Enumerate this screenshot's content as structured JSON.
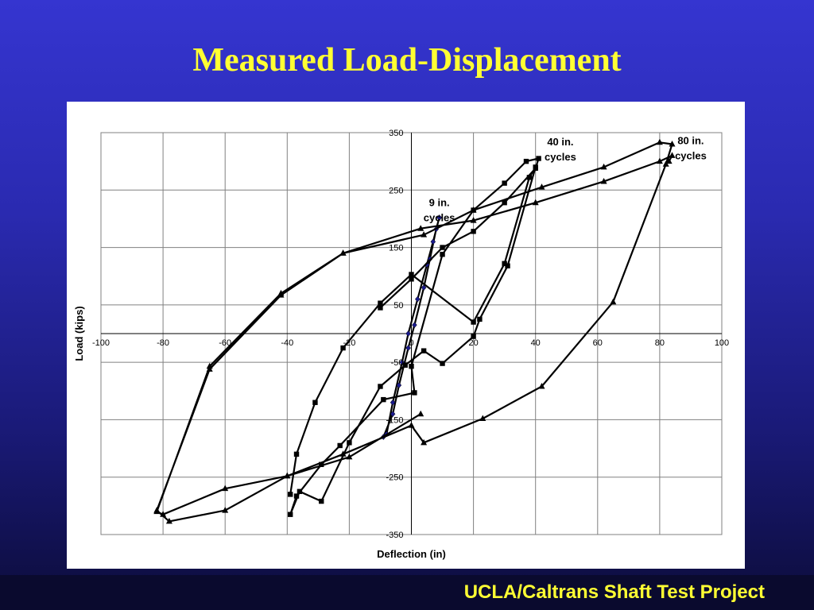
{
  "slide": {
    "title": "Measured Load-Displacement",
    "footer": "UCLA/Caltrans Shaft Test Project"
  },
  "colors": {
    "background_top": "#3535d0",
    "background_bottom": "#0c0c3a",
    "title": "#ffff33",
    "footer_text": "#ffff33",
    "series_line": "#000000",
    "diamond_marker": "#1a1a8c"
  },
  "chart_data": {
    "type": "line",
    "title": "",
    "xlabel": "Deflection (in)",
    "ylabel": "Load (kips)",
    "xlim": [
      -100,
      100
    ],
    "ylim": [
      -350,
      350
    ],
    "x_ticks": [
      -100,
      -80,
      -60,
      -40,
      -20,
      0,
      20,
      40,
      60,
      80,
      100
    ],
    "y_ticks": [
      -350,
      -250,
      -150,
      -50,
      50,
      150,
      250,
      350
    ],
    "x_tick_labels": [
      "-100",
      "-80",
      "-60",
      "-40",
      "-20",
      "0",
      "20",
      "40",
      "60",
      "80",
      "100"
    ],
    "y_tick_labels": [
      "-350",
      "-250",
      "-150",
      "-50",
      "50",
      "150",
      "250",
      "350"
    ],
    "grid": true,
    "annotations": [
      {
        "line1": "9 in.",
        "line2": "cycles",
        "x": 9,
        "y": 222
      },
      {
        "line1": "40 in.",
        "line2": "cycles",
        "x": 48,
        "y": 328
      },
      {
        "line1": "80 in.",
        "line2": "cycles",
        "x": 90,
        "y": 330
      }
    ],
    "series": [
      {
        "marker": "diamond",
        "values": [
          [
            9,
            202
          ],
          [
            8,
            182
          ],
          [
            6,
            130
          ],
          [
            4,
            80
          ],
          [
            1,
            15
          ],
          [
            -1,
            -25
          ],
          [
            -4,
            -90
          ],
          [
            -6,
            -140
          ],
          [
            -9,
            -180
          ],
          [
            -8,
            -175
          ],
          [
            -6,
            -120
          ],
          [
            -3,
            -50
          ],
          [
            -1,
            0
          ],
          [
            2,
            60
          ],
          [
            5,
            120
          ],
          [
            7,
            160
          ],
          [
            9,
            202
          ]
        ]
      },
      {
        "marker": "square",
        "values": [
          [
            -10,
            45
          ],
          [
            0,
            95
          ],
          [
            10,
            150
          ],
          [
            20,
            178
          ],
          [
            30,
            228
          ],
          [
            40,
            288
          ],
          [
            41,
            305
          ],
          [
            37,
            300
          ],
          [
            30,
            262
          ],
          [
            20,
            215
          ],
          [
            10,
            138
          ],
          [
            0,
            -57
          ],
          [
            1,
            -103
          ],
          [
            -9,
            -115
          ],
          [
            -23,
            -195
          ],
          [
            -29,
            -228
          ],
          [
            -37,
            -283
          ],
          [
            -39,
            -315
          ],
          [
            -36,
            -275
          ],
          [
            -29,
            -292
          ],
          [
            -20,
            -190
          ],
          [
            -10,
            -92
          ],
          [
            -2,
            -55
          ],
          [
            4,
            -30
          ],
          [
            10,
            -52
          ],
          [
            20,
            -5
          ],
          [
            22,
            25
          ],
          [
            31,
            118
          ],
          [
            40,
            290
          ],
          [
            38,
            272
          ],
          [
            30,
            122
          ],
          [
            20,
            20
          ],
          [
            0,
            103
          ],
          [
            -10,
            53
          ],
          [
            -22,
            -25
          ],
          [
            -31,
            -120
          ],
          [
            -37,
            -210
          ],
          [
            -39,
            -280
          ]
        ]
      },
      {
        "marker": "triangle",
        "values": [
          [
            83,
            300
          ],
          [
            84,
            310
          ],
          [
            80,
            300
          ],
          [
            62,
            265
          ],
          [
            40,
            228
          ],
          [
            20,
            197
          ],
          [
            3,
            183
          ],
          [
            -22,
            140
          ],
          [
            -42,
            67
          ],
          [
            -65,
            -62
          ],
          [
            -82,
            -308
          ],
          [
            -78,
            -327
          ],
          [
            -60,
            -308
          ],
          [
            -40,
            -248
          ],
          [
            -22,
            -210
          ],
          [
            0,
            -160
          ],
          [
            4,
            -190
          ],
          [
            23,
            -148
          ],
          [
            42,
            -92
          ],
          [
            65,
            55
          ],
          [
            82,
            295
          ],
          [
            84,
            330
          ],
          [
            80,
            333
          ],
          [
            62,
            290
          ],
          [
            42,
            255
          ],
          [
            20,
            215
          ],
          [
            4,
            172
          ],
          [
            -22,
            140
          ],
          [
            -42,
            70
          ],
          [
            -65,
            -57
          ],
          [
            -82,
            -310
          ],
          [
            -80,
            -315
          ],
          [
            -60,
            -270
          ],
          [
            -40,
            -248
          ],
          [
            -20,
            -215
          ],
          [
            3,
            -140
          ]
        ]
      }
    ]
  }
}
